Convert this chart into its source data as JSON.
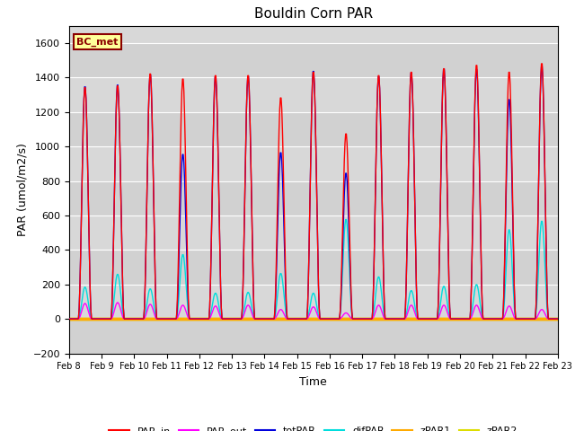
{
  "title": "Bouldin Corn PAR",
  "ylabel": "PAR (umol/m2/s)",
  "xlabel": "Time",
  "ylim": [
    -200,
    1700
  ],
  "yticks": [
    -200,
    0,
    200,
    400,
    600,
    800,
    1000,
    1200,
    1400,
    1600
  ],
  "plot_bg_color": "#d8d8d8",
  "legend_label": "BC_met",
  "series_colors": {
    "PAR_in": "#ff0000",
    "PAR_out": "#ff00ff",
    "totPAR": "#0000dd",
    "difPAR": "#00dddd",
    "zPAR1": "#ffaa00",
    "zPAR2": "#dddd00"
  },
  "n_days": 15,
  "start_day": 8,
  "peaks": {
    "PAR_in": [
      1350,
      1360,
      1430,
      1400,
      1420,
      1420,
      1290,
      1440,
      1080,
      1420,
      1440,
      1460,
      1480,
      1440,
      1490
    ],
    "totPAR": [
      1355,
      1365,
      1425,
      960,
      1415,
      1415,
      970,
      1445,
      850,
      1415,
      1435,
      1460,
      1455,
      1280,
      1475
    ],
    "difPAR": [
      185,
      260,
      175,
      375,
      150,
      155,
      265,
      150,
      580,
      245,
      165,
      190,
      200,
      520,
      570
    ],
    "PAR_out": [
      90,
      95,
      85,
      80,
      75,
      80,
      55,
      70,
      35,
      80,
      80,
      80,
      80,
      75,
      55
    ]
  }
}
